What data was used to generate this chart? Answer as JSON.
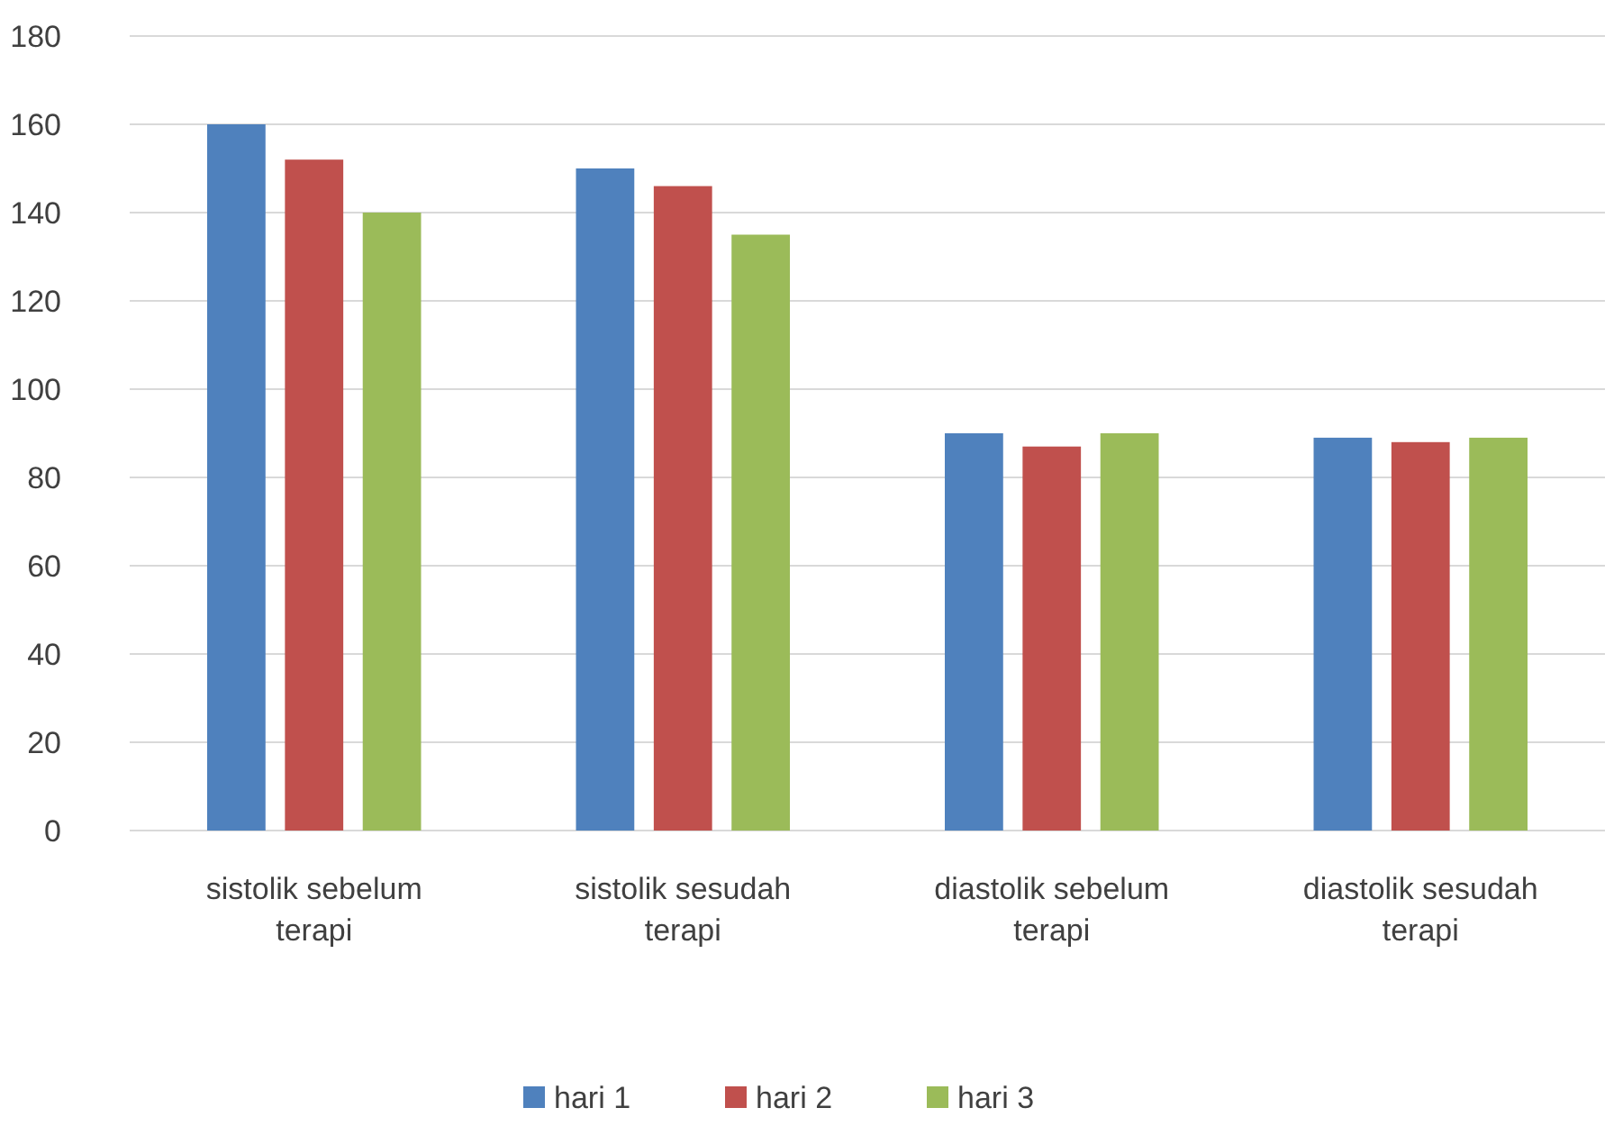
{
  "chart_data": {
    "type": "bar",
    "categories": [
      "sistolik sebelum terapi",
      "sistolik sesudah terapi",
      "diastolik sebelum terapi",
      "diastolik sesudah terapi"
    ],
    "series": [
      {
        "name": "hari 1",
        "color": "#4f81bd",
        "values": [
          160,
          150,
          90,
          89
        ]
      },
      {
        "name": "hari 2",
        "color": "#c0504d",
        "values": [
          152,
          146,
          87,
          88
        ]
      },
      {
        "name": "hari 3",
        "color": "#9bbb59",
        "values": [
          140,
          135,
          90,
          89
        ]
      }
    ],
    "ylim": [
      0,
      180
    ],
    "yticks": [
      0,
      20,
      40,
      60,
      80,
      100,
      120,
      140,
      160,
      180
    ],
    "grid": "y",
    "legend": "bottom"
  }
}
